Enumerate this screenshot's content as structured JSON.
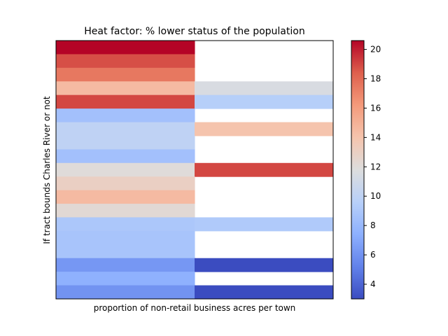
{
  "chart_data": {
    "type": "heatmap",
    "title": "Heat factor: % lower status of the population",
    "xlabel": "proportion of non-retail business acres per town",
    "ylabel": "If tract bounds Charles River or not",
    "colormap": "coolwarm",
    "value_range": [
      3.0,
      20.6
    ],
    "colorbar_ticks": [
      "4",
      "6",
      "8",
      "10",
      "12",
      "14",
      "16",
      "18",
      "20"
    ],
    "columns": 2,
    "rows": 19,
    "cells": [
      [
        20.6,
        null
      ],
      [
        18.8,
        null
      ],
      [
        17.5,
        null
      ],
      [
        14.5,
        11.5
      ],
      [
        19.0,
        9.5
      ],
      [
        8.5,
        null
      ],
      [
        10.0,
        14.0
      ],
      [
        10.0,
        null
      ],
      [
        8.5,
        null
      ],
      [
        12.0,
        19.0
      ],
      [
        13.0,
        null
      ],
      [
        14.5,
        null
      ],
      [
        12.2,
        null
      ],
      [
        9.0,
        9.2
      ],
      [
        8.8,
        null
      ],
      [
        8.8,
        null
      ],
      [
        6.2,
        3.0
      ],
      [
        7.5,
        null
      ],
      [
        6.0,
        3.0
      ]
    ]
  }
}
